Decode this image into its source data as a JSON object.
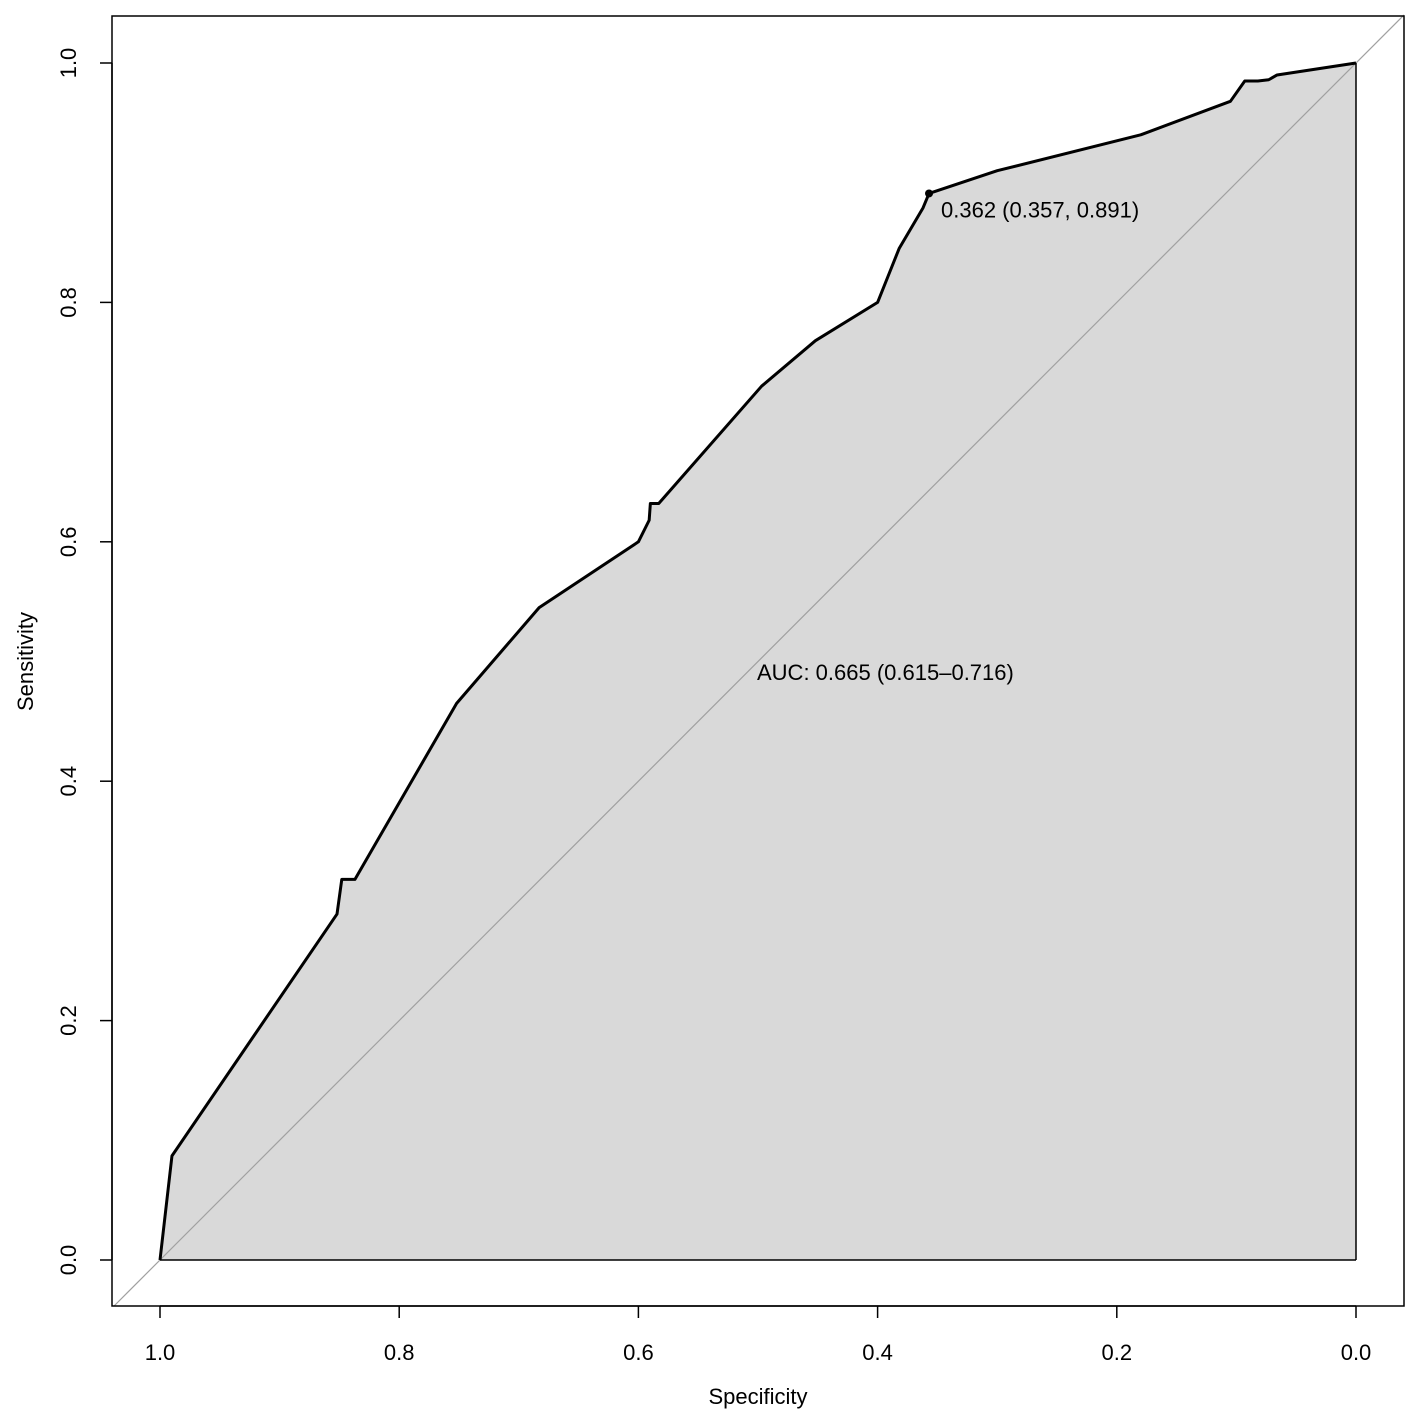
{
  "chart_data": {
    "type": "line",
    "title": "",
    "xlabel": "Specificity",
    "ylabel": "Sensitivity",
    "x_reversed": true,
    "xlim": [
      1.0,
      0.0
    ],
    "ylim": [
      0.0,
      1.0
    ],
    "xticks": [
      1.0,
      0.8,
      0.6,
      0.4,
      0.2,
      0.0
    ],
    "xtick_labels": [
      "1.0",
      "0.8",
      "0.6",
      "0.4",
      "0.2",
      "0.0"
    ],
    "yticks": [
      0.0,
      0.2,
      0.4,
      0.6,
      0.8,
      1.0
    ],
    "ytick_labels": [
      "0.0",
      "0.2",
      "0.4",
      "0.6",
      "0.8",
      "1.0"
    ],
    "grid": false,
    "area_fill": "#d9d9d9",
    "diagonal_color": "#a0a0a0",
    "series": [
      {
        "x": [
          1.0,
          0.99,
          0.852,
          0.848,
          0.837,
          0.752,
          0.683,
          0.6,
          0.591,
          0.59,
          0.583,
          0.497,
          0.452,
          0.4,
          0.382,
          0.362,
          0.357,
          0.3,
          0.18,
          0.105,
          0.093,
          0.082,
          0.073,
          0.066,
          0.0
        ],
        "y": [
          0.0,
          0.087,
          0.289,
          0.318,
          0.318,
          0.465,
          0.545,
          0.6,
          0.618,
          0.632,
          0.632,
          0.73,
          0.768,
          0.8,
          0.845,
          0.879,
          0.891,
          0.91,
          0.94,
          0.968,
          0.985,
          0.985,
          0.986,
          0.99,
          1.0
        ]
      }
    ],
    "threshold_point": {
      "x": 0.357,
      "y": 0.891,
      "label": "0.362 (0.357, 0.891)"
    },
    "auc_text": "AUC: 0.665 (0.615–0.716)"
  }
}
